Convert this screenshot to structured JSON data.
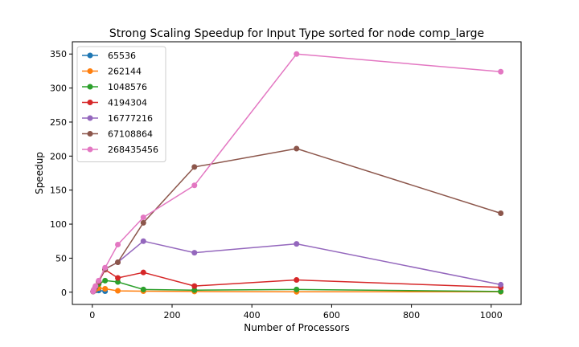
{
  "chart_data": {
    "type": "line",
    "title": "Strong Scaling Speedup for Input Type sorted for node comp_large",
    "xlabel": "Number of Processors",
    "ylabel": "Speedup",
    "xlim": [
      -50,
      1075
    ],
    "ylim": [
      -18,
      368
    ],
    "xticks": [
      0,
      200,
      400,
      600,
      800,
      1000
    ],
    "yticks": [
      0,
      50,
      100,
      150,
      200,
      250,
      300,
      350
    ],
    "x": [
      2,
      4,
      8,
      16,
      32,
      64,
      128,
      256,
      512,
      1024
    ],
    "grid": false,
    "legend_position": "upper-left",
    "series": [
      {
        "name": "65536",
        "color": "#1f77b4",
        "x": [
          2,
          4,
          8,
          16,
          32
        ],
        "values": [
          1.0,
          1.8,
          2.5,
          2.5,
          1.5
        ]
      },
      {
        "name": "262144",
        "color": "#ff7f0e",
        "x": [
          2,
          4,
          8,
          16,
          32,
          64,
          128,
          256,
          512,
          1024
        ],
        "values": [
          1.0,
          2.0,
          4.0,
          6.0,
          5.0,
          2.0,
          1.5,
          1.0,
          0.5,
          0.5
        ]
      },
      {
        "name": "1048576",
        "color": "#2ca02c",
        "x": [
          2,
          4,
          8,
          16,
          32,
          64,
          128,
          256,
          512,
          1024
        ],
        "values": [
          1.0,
          3.0,
          7.0,
          12.0,
          17.0,
          15.0,
          4.0,
          3.0,
          4.0,
          1.0
        ]
      },
      {
        "name": "4194304",
        "color": "#d62728",
        "x": [
          2,
          4,
          8,
          16,
          32,
          64,
          128,
          256,
          512,
          1024
        ],
        "values": [
          1.0,
          3.5,
          8.0,
          15.0,
          33.0,
          21.0,
          29.0,
          9.0,
          18.0,
          7.0
        ]
      },
      {
        "name": "16777216",
        "color": "#9467bd",
        "x": [
          2,
          4,
          8,
          16,
          32,
          64,
          128,
          256,
          512,
          1024
        ],
        "values": [
          1.0,
          3.5,
          8.0,
          16.0,
          34.0,
          44.0,
          75.0,
          58.0,
          71.0,
          11.0
        ]
      },
      {
        "name": "67108864",
        "color": "#8c564b",
        "x": [
          2,
          4,
          8,
          16,
          32,
          64,
          128,
          256,
          512,
          1024
        ],
        "values": [
          1.0,
          3.5,
          8.0,
          16.0,
          34.0,
          44.0,
          102.0,
          184.0,
          211.0,
          116.0
        ]
      },
      {
        "name": "268435456",
        "color": "#e377c2",
        "x": [
          2,
          4,
          8,
          16,
          32,
          64,
          128,
          256,
          512,
          1024
        ],
        "values": [
          1.0,
          4.0,
          9.0,
          17.0,
          36.0,
          70.0,
          110.0,
          157.0,
          350.0,
          324.0
        ]
      }
    ]
  }
}
